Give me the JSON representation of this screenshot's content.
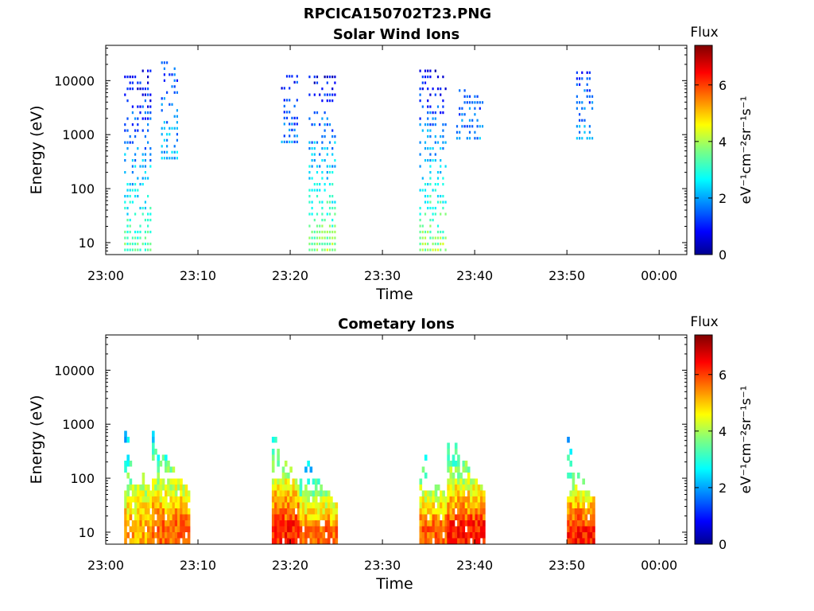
{
  "figure_title": "RPCICA150702T23.PNG",
  "chart_data": [
    {
      "type": "heatmap",
      "title": "Solar Wind Ions",
      "xlabel": "Time",
      "ylabel": "Energy (eV)",
      "y_scale": "log",
      "xlim": [
        "23:00",
        "00:03"
      ],
      "ylim": [
        6,
        45000
      ],
      "x_ticks": [
        "23:00",
        "23:10",
        "23:20",
        "23:30",
        "23:40",
        "23:50",
        "00:00"
      ],
      "y_ticks": [
        "10",
        "100",
        "1000",
        "10000"
      ],
      "colorbar": {
        "label": "Flux",
        "units": "eV⁻¹cm⁻²sr⁻¹s⁻¹",
        "range": [
          0,
          7.4
        ],
        "ticks": [
          "0",
          "2",
          "4",
          "6"
        ],
        "colormap": "jet"
      },
      "bursts": [
        {
          "time_start": "23:02",
          "time_end": "23:05",
          "energy_min_eV": 6,
          "energy_max_eV": 17000,
          "flux_low_energy": 3.5,
          "flux_high_energy": 0.6
        },
        {
          "time_start": "23:06",
          "time_end": "23:08",
          "energy_min_eV": 300,
          "energy_max_eV": 28000,
          "flux_low_energy": 2.2,
          "flux_high_energy": 1.2
        },
        {
          "time_start": "23:19",
          "time_end": "23:21",
          "energy_min_eV": 600,
          "energy_max_eV": 15000,
          "flux_low_energy": 1.8,
          "flux_high_energy": 1.0
        },
        {
          "time_start": "23:22",
          "time_end": "23:25",
          "energy_min_eV": 6,
          "energy_max_eV": 14000,
          "flux_low_energy": 4.0,
          "flux_high_energy": 0.6
        },
        {
          "time_start": "23:34",
          "time_end": "23:37",
          "energy_min_eV": 6,
          "energy_max_eV": 16000,
          "flux_low_energy": 4.0,
          "flux_high_energy": 0.6
        },
        {
          "time_start": "23:38",
          "time_end": "23:41",
          "energy_min_eV": 700,
          "energy_max_eV": 7000,
          "flux_low_energy": 2.0,
          "flux_high_energy": 1.2
        },
        {
          "time_start": "23:51",
          "time_end": "23:53",
          "energy_min_eV": 700,
          "energy_max_eV": 16000,
          "flux_low_energy": 2.0,
          "flux_high_energy": 1.2
        }
      ]
    },
    {
      "type": "heatmap",
      "title": "Cometary Ions",
      "xlabel": "Time",
      "ylabel": "Energy (eV)",
      "y_scale": "log",
      "xlim": [
        "23:00",
        "00:03"
      ],
      "ylim": [
        6,
        45000
      ],
      "x_ticks": [
        "23:00",
        "23:10",
        "23:20",
        "23:30",
        "23:40",
        "23:50",
        "00:00"
      ],
      "y_ticks": [
        "10",
        "100",
        "1000",
        "10000"
      ],
      "colorbar": {
        "label": "Flux",
        "units": "eV⁻¹cm⁻²sr⁻¹s⁻¹",
        "range": [
          0,
          7.4
        ],
        "ticks": [
          "0",
          "2",
          "4",
          "6"
        ],
        "colormap": "jet"
      },
      "bursts": [
        {
          "time_start": "23:02",
          "time_end": "23:05",
          "energy_min_eV": 6,
          "energy_max_eV": 900,
          "flux_low_energy": 6.0,
          "flux_high_energy": 2.0
        },
        {
          "time_start": "23:05",
          "time_end": "23:09",
          "energy_min_eV": 6,
          "energy_max_eV": 1000,
          "flux_low_energy": 6.5,
          "flux_high_energy": 2.0
        },
        {
          "time_start": "23:18",
          "time_end": "23:21",
          "energy_min_eV": 6,
          "energy_max_eV": 1300,
          "flux_low_energy": 7.0,
          "flux_high_energy": 2.0
        },
        {
          "time_start": "23:21",
          "time_end": "23:25",
          "energy_min_eV": 6,
          "energy_max_eV": 400,
          "flux_low_energy": 6.5,
          "flux_high_energy": 1.5
        },
        {
          "time_start": "23:34",
          "time_end": "23:37",
          "energy_min_eV": 6,
          "energy_max_eV": 550,
          "flux_low_energy": 6.5,
          "flux_high_energy": 2.0
        },
        {
          "time_start": "23:37",
          "time_end": "23:41",
          "energy_min_eV": 6,
          "energy_max_eV": 1000,
          "flux_low_energy": 7.0,
          "flux_high_energy": 2.0
        },
        {
          "time_start": "23:50",
          "time_end": "23:53",
          "energy_min_eV": 6,
          "energy_max_eV": 600,
          "flux_low_energy": 7.0,
          "flux_high_energy": 2.0
        }
      ]
    }
  ]
}
